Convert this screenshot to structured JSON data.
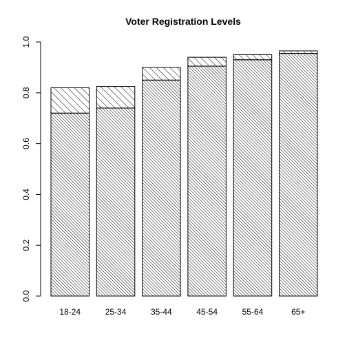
{
  "chart_data": {
    "type": "bar",
    "stacked": true,
    "title": "Voter Registration Levels",
    "xlabel": "",
    "ylabel": "",
    "categories": [
      "18-24",
      "25-34",
      "35-44",
      "45-54",
      "55-64",
      "65+"
    ],
    "series": [
      {
        "values": [
          0.72,
          0.74,
          0.85,
          0.905,
          0.93,
          0.955
        ]
      },
      {
        "values": [
          0.1,
          0.085,
          0.05,
          0.035,
          0.02,
          0.01
        ]
      }
    ],
    "totals": [
      0.82,
      0.825,
      0.9,
      0.94,
      0.95,
      0.965
    ],
    "ylim": [
      0,
      1
    ],
    "yticks": [
      "0.0",
      "0.2",
      "0.4",
      "0.6",
      "0.8",
      "1.0"
    ],
    "ytick_values": [
      0,
      0.2,
      0.4,
      0.6,
      0.8,
      1.0
    ],
    "grid": false,
    "legend": "none",
    "fill_style": "diagonal hatching",
    "colors": {
      "bar_stroke": "#000000",
      "hatch": "#000000",
      "background": "#ffffff"
    }
  }
}
